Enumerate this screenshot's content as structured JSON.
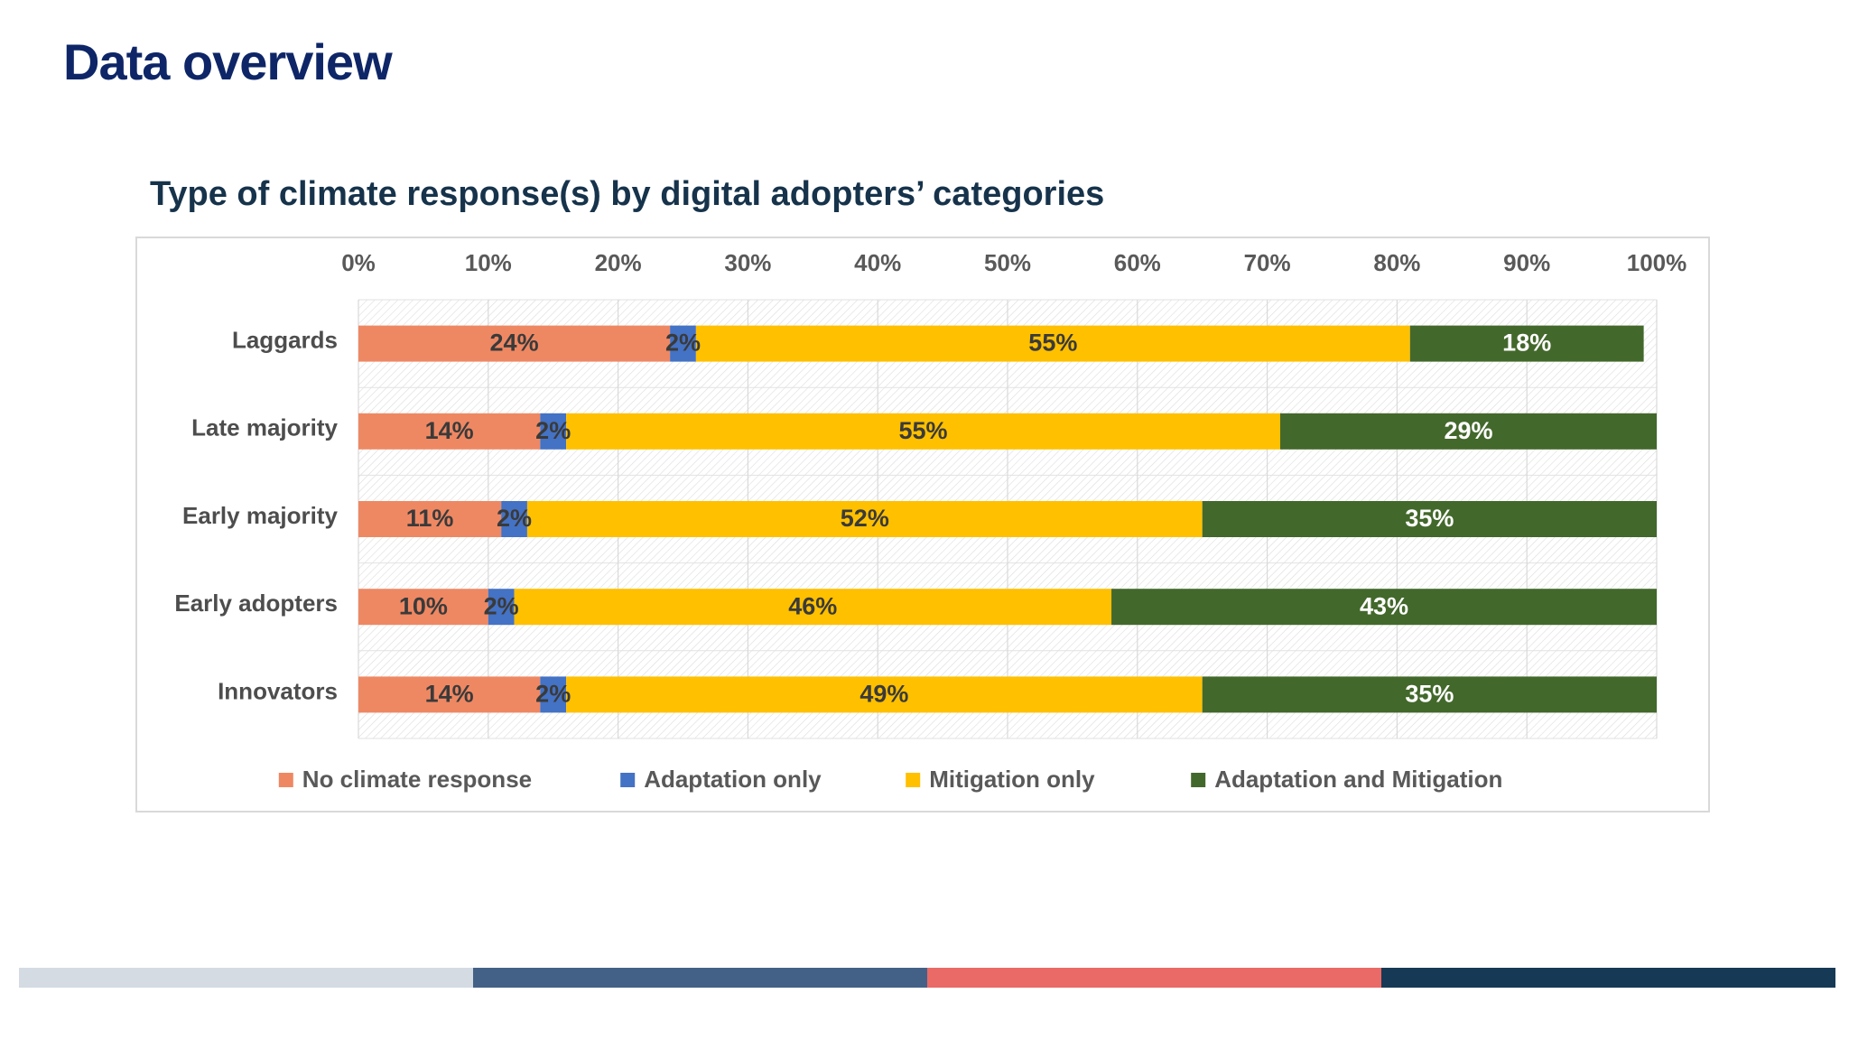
{
  "slide": {
    "title": "Data overview",
    "footer_colors": [
      "#d4dbe3",
      "#436187",
      "#e96a66",
      "#163a55"
    ]
  },
  "chart_data": {
    "type": "bar",
    "orientation": "horizontal",
    "stacked": "percent",
    "title": "Type of climate response(s) by digital adopters’ categories",
    "xlabel": "",
    "ylabel": "",
    "xlim": [
      0,
      100
    ],
    "x_ticks": [
      "0%",
      "10%",
      "20%",
      "30%",
      "40%",
      "50%",
      "60%",
      "70%",
      "80%",
      "90%",
      "100%"
    ],
    "x_axis_position": "top",
    "grid": true,
    "legend_position": "bottom",
    "categories": [
      "Laggards",
      "Late majority",
      "Early majority",
      "Early adopters",
      "Innovators"
    ],
    "series": [
      {
        "name": "No climate response",
        "color": "#ee8863",
        "label_color": "#3a3a3a",
        "values": [
          24,
          14,
          11,
          10,
          14
        ],
        "labels": [
          "24%",
          "14%",
          "11%",
          "10%",
          "14%"
        ]
      },
      {
        "name": "Adaptation only",
        "color": "#4472c4",
        "label_color": "#3a3a3a",
        "values": [
          2,
          2,
          2,
          2,
          2
        ],
        "labels": [
          "2%",
          "2%",
          "2%",
          "2%",
          "2%"
        ]
      },
      {
        "name": "Mitigation only",
        "color": "#ffc000",
        "label_color": "#3a3a3a",
        "values": [
          55,
          55,
          52,
          46,
          49
        ],
        "labels": [
          "55%",
          "55%",
          "52%",
          "46%",
          "49%"
        ]
      },
      {
        "name": "Adaptation and Mitigation",
        "color": "#43682b",
        "label_color": "#ffffff",
        "values": [
          18,
          29,
          35,
          43,
          35
        ],
        "labels": [
          "18%",
          "29%",
          "35%",
          "43%",
          "35%"
        ]
      }
    ]
  }
}
